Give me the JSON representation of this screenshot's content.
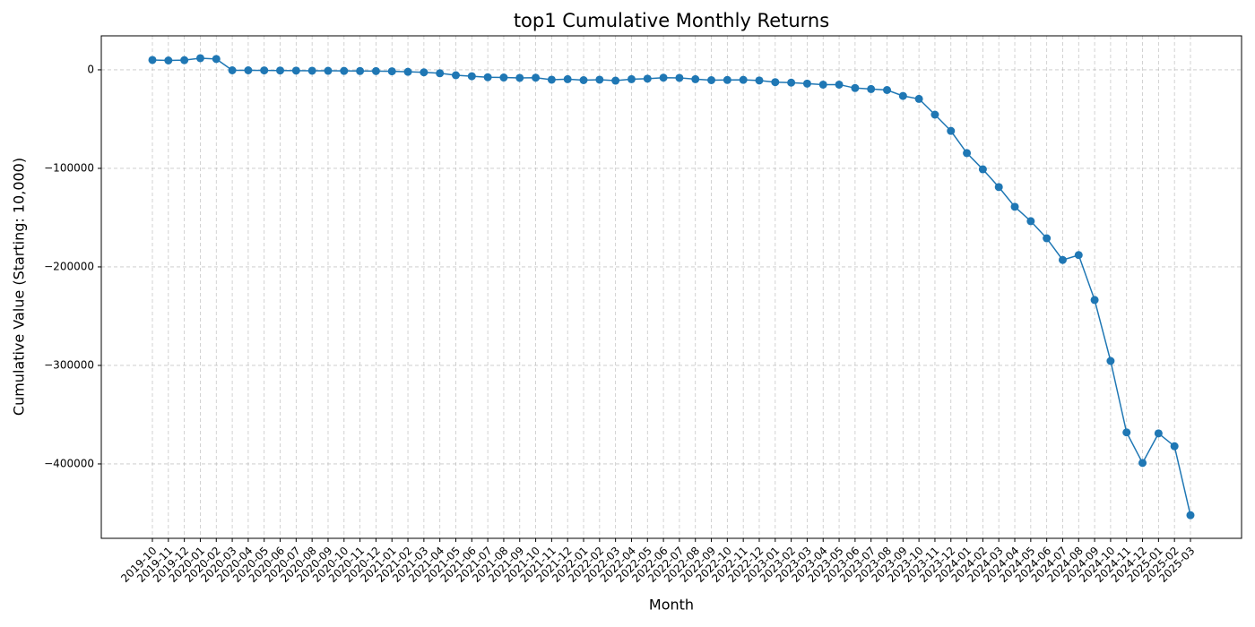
{
  "chart_data": {
    "type": "line",
    "title": "top1 Cumulative Monthly Returns",
    "xlabel": "Month",
    "ylabel": "Cumulative Value (Starting: 10,000)",
    "categories": [
      "2019-10",
      "2019-11",
      "2019-12",
      "2020-01",
      "2020-02",
      "2020-03",
      "2020-04",
      "2020-05",
      "2020-06",
      "2020-07",
      "2020-08",
      "2020-09",
      "2020-10",
      "2020-11",
      "2020-12",
      "2021-01",
      "2021-02",
      "2021-03",
      "2021-04",
      "2021-05",
      "2021-06",
      "2021-07",
      "2021-08",
      "2021-09",
      "2021-10",
      "2021-11",
      "2021-12",
      "2022-01",
      "2022-02",
      "2022-03",
      "2022-04",
      "2022-05",
      "2022-06",
      "2022-07",
      "2022-08",
      "2022-09",
      "2022-10",
      "2022-11",
      "2022-12",
      "2023-01",
      "2023-02",
      "2023-03",
      "2023-04",
      "2023-05",
      "2023-06",
      "2023-07",
      "2023-08",
      "2023-09",
      "2023-10",
      "2023-11",
      "2023-12",
      "2024-01",
      "2024-02",
      "2024-03",
      "2024-04",
      "2024-05",
      "2024-06",
      "2024-07",
      "2024-08",
      "2024-09",
      "2024-10",
      "2024-11",
      "2024-12",
      "2025-01",
      "2025-02",
      "2025-03"
    ],
    "series": [
      {
        "name": "top1",
        "color": "#1f77b4",
        "values": [
          10000,
          9500,
          9800,
          11800,
          11000,
          -500,
          -500,
          -600,
          -700,
          -800,
          -900,
          -1000,
          -1100,
          -1200,
          -1300,
          -1500,
          -2000,
          -2500,
          -3500,
          -5500,
          -6500,
          -7500,
          -7800,
          -8200,
          -8000,
          -10000,
          -9500,
          -10500,
          -10000,
          -11000,
          -9500,
          -9000,
          -8000,
          -8200,
          -9500,
          -10500,
          -10300,
          -10200,
          -10800,
          -12500,
          -13000,
          -14000,
          -15000,
          -15000,
          -18500,
          -19500,
          -20500,
          -26500,
          -29500,
          -45500,
          -62000,
          -84500,
          -101000,
          -119000,
          -139000,
          -153600,
          -171000,
          -193000,
          -188000,
          -233600,
          -295500,
          -368000,
          -399000,
          -369000,
          -382000,
          -452000
        ]
      }
    ],
    "ylim": [
      -475500,
      34500
    ],
    "yticks": [
      0,
      {
        "value": -100000,
        "label": "−100000"
      },
      {
        "value": -200000,
        "label": "−200000"
      },
      {
        "value": -300000,
        "label": "−300000"
      },
      {
        "value": -400000,
        "label": "−400000"
      }
    ],
    "grid": true
  }
}
